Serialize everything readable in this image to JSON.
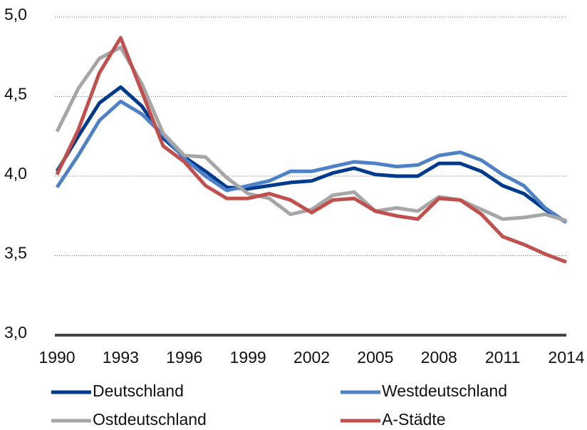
{
  "chart_data": {
    "type": "line",
    "x": [
      1990,
      1991,
      1992,
      1993,
      1994,
      1995,
      1996,
      1997,
      1998,
      1999,
      2000,
      2001,
      2002,
      2003,
      2004,
      2005,
      2006,
      2007,
      2008,
      2009,
      2010,
      2011,
      2012,
      2013,
      2014
    ],
    "xlim": [
      1990,
      2014
    ],
    "xticks": [
      1990,
      1993,
      1996,
      1999,
      2002,
      2005,
      2008,
      2011,
      2014
    ],
    "ylim": [
      3,
      5
    ],
    "yticks": [
      {
        "value": 3,
        "label": "3,0"
      },
      {
        "value": 3.5,
        "label": "3,5"
      },
      {
        "value": 4,
        "label": "4,0"
      },
      {
        "value": 4.5,
        "label": "4,5"
      },
      {
        "value": 5,
        "label": "5,0"
      }
    ],
    "grid": true,
    "series": [
      {
        "name": "Deutschland",
        "color": "#003a8c",
        "values": [
          4.03,
          4.25,
          4.46,
          4.56,
          4.44,
          4.24,
          4.12,
          4.03,
          3.93,
          3.92,
          3.94,
          3.96,
          3.97,
          4.02,
          4.05,
          4.01,
          4.0,
          4.0,
          4.08,
          4.08,
          4.03,
          3.94,
          3.89,
          3.79,
          3.71
        ]
      },
      {
        "name": "Westdeutschland",
        "color": "#4f81c7",
        "values": [
          3.93,
          4.13,
          4.35,
          4.47,
          4.39,
          4.26,
          4.11,
          4.0,
          3.91,
          3.94,
          3.97,
          4.03,
          4.03,
          4.06,
          4.09,
          4.08,
          4.06,
          4.07,
          4.13,
          4.15,
          4.1,
          4.01,
          3.94,
          3.8,
          3.71
        ]
      },
      {
        "name": "Ostdeutschland",
        "color": "#a6a6a6",
        "values": [
          4.28,
          4.55,
          4.74,
          4.81,
          4.58,
          4.27,
          4.13,
          4.12,
          3.99,
          3.89,
          3.86,
          3.76,
          3.79,
          3.88,
          3.9,
          3.78,
          3.8,
          3.78,
          3.87,
          3.85,
          3.79,
          3.73,
          3.74,
          3.76,
          3.72
        ]
      },
      {
        "name": "A-Städte",
        "color": "#c0504d",
        "values": [
          4.01,
          4.29,
          4.65,
          4.87,
          4.53,
          4.19,
          4.09,
          3.94,
          3.86,
          3.86,
          3.89,
          3.85,
          3.77,
          3.85,
          3.86,
          3.78,
          3.75,
          3.73,
          3.86,
          3.85,
          3.76,
          3.62,
          3.57,
          3.51,
          3.46
        ]
      }
    ]
  }
}
